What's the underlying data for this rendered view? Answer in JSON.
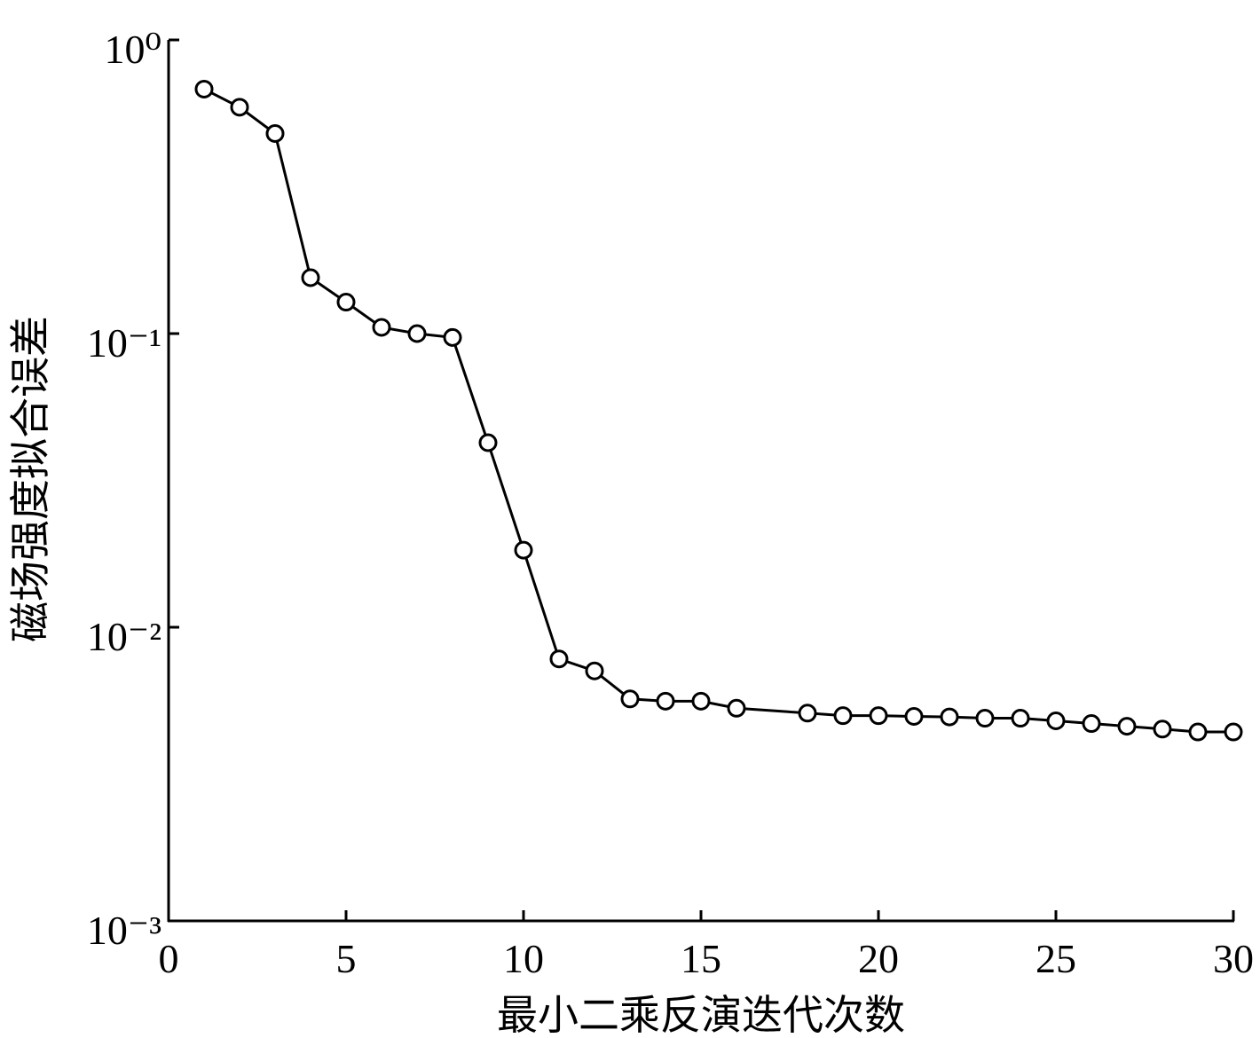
{
  "chart_data": {
    "type": "line",
    "y_label": "磁场强度拟合误差",
    "x_label": "最小二乘反演迭代次数",
    "x": [
      1,
      2,
      3,
      4,
      5,
      6,
      7,
      8,
      9,
      10,
      11,
      12,
      13,
      14,
      15,
      16,
      18,
      19,
      20,
      21,
      22,
      23,
      24,
      25,
      26,
      27,
      28,
      29,
      30
    ],
    "values": [
      0.68,
      0.59,
      0.48,
      0.155,
      0.128,
      0.105,
      0.1,
      0.097,
      0.0425,
      0.0183,
      0.0078,
      0.0071,
      0.0057,
      0.0056,
      0.0056,
      0.0053,
      0.0051,
      0.005,
      0.005,
      0.00497,
      0.00495,
      0.0049,
      0.0049,
      0.0048,
      0.0047,
      0.0046,
      0.0045,
      0.0044,
      0.0044
    ],
    "color": "#000000",
    "marker": "circle",
    "yscale": "log",
    "xlim": [
      0,
      30
    ],
    "xticks": [
      0,
      5,
      10,
      15,
      20,
      25,
      30
    ],
    "ylim": [
      0.001,
      1
    ],
    "yticks": [
      {
        "value": 1,
        "label": "10⁰"
      },
      {
        "value": 0.1,
        "label": "10⁻¹"
      },
      {
        "value": 0.01,
        "label": "10⁻²"
      },
      {
        "value": 0.001,
        "label": "10⁻³"
      }
    ]
  }
}
